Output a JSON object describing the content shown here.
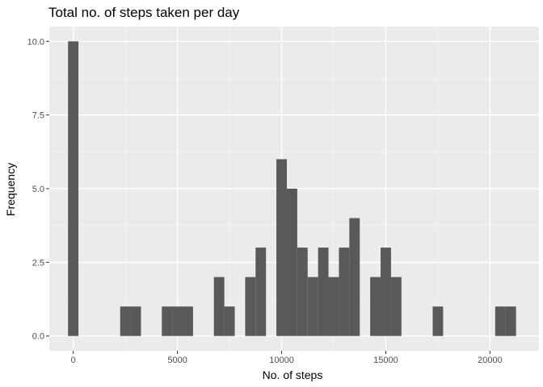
{
  "colors": {
    "panel_background": "#ebebeb",
    "grid_major": "#ffffff",
    "grid_minor": "#f5f5f5",
    "bar_fill": "#595959",
    "tick_color": "#333333"
  },
  "chart_data": {
    "type": "bar",
    "title": "Total no. of steps taken per day",
    "xlabel": "No. of steps",
    "ylabel": "Frequency",
    "xlim": [
      -1150,
      22350
    ],
    "ylim": [
      -0.5,
      10.5
    ],
    "bin_width": 500,
    "x_ticks": [
      0,
      5000,
      10000,
      15000,
      20000
    ],
    "x_tick_labels": [
      "0",
      "5000",
      "10000",
      "15000",
      "20000"
    ],
    "y_ticks": [
      0,
      2.5,
      5,
      7.5,
      10
    ],
    "y_tick_labels": [
      "0.0",
      "2.5",
      "5.0",
      "7.5",
      "10.0"
    ],
    "grid": true,
    "legend": "none",
    "bins": [
      {
        "x": 0,
        "count": 10
      },
      {
        "x": 2500,
        "count": 1
      },
      {
        "x": 3000,
        "count": 1
      },
      {
        "x": 4500,
        "count": 1
      },
      {
        "x": 5000,
        "count": 1
      },
      {
        "x": 5500,
        "count": 1
      },
      {
        "x": 7000,
        "count": 2
      },
      {
        "x": 7500,
        "count": 1
      },
      {
        "x": 8500,
        "count": 2
      },
      {
        "x": 9000,
        "count": 3
      },
      {
        "x": 10000,
        "count": 6
      },
      {
        "x": 10500,
        "count": 5
      },
      {
        "x": 11000,
        "count": 3
      },
      {
        "x": 11500,
        "count": 2
      },
      {
        "x": 12000,
        "count": 3
      },
      {
        "x": 12500,
        "count": 2
      },
      {
        "x": 13000,
        "count": 3
      },
      {
        "x": 13500,
        "count": 4
      },
      {
        "x": 14500,
        "count": 2
      },
      {
        "x": 15000,
        "count": 3
      },
      {
        "x": 15500,
        "count": 2
      },
      {
        "x": 17500,
        "count": 1
      },
      {
        "x": 20500,
        "count": 1
      },
      {
        "x": 21000,
        "count": 1
      }
    ]
  }
}
